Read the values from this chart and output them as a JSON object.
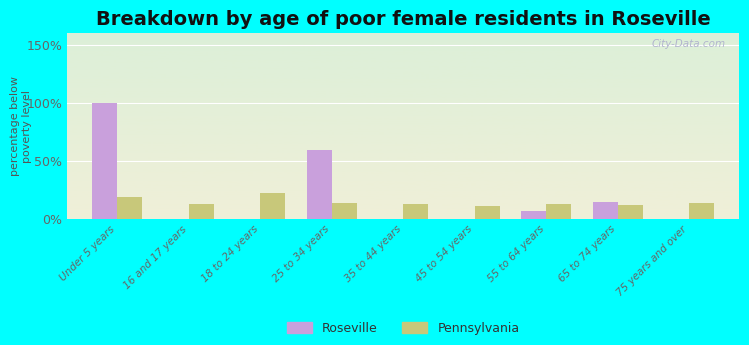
{
  "title": "Breakdown by age of poor female residents in Roseville",
  "categories": [
    "Under 5 years",
    "16 and 17 years",
    "18 to 24 years",
    "25 to 34 years",
    "35 to 44 years",
    "45 to 54 years",
    "55 to 64 years",
    "65 to 74 years",
    "75 years and over"
  ],
  "roseville": [
    100,
    0,
    0,
    59,
    0,
    0,
    7,
    15,
    0
  ],
  "pennsylvania": [
    19,
    13,
    22,
    14,
    13,
    11,
    13,
    12,
    14
  ],
  "roseville_color": "#c9a0dc",
  "pennsylvania_color": "#c8c87a",
  "plot_bg_top": "#dcefd8",
  "plot_bg_bottom": "#f0f0d8",
  "outer_bg": "#00ffff",
  "ylim": [
    0,
    160
  ],
  "yticks": [
    0,
    50,
    100,
    150
  ],
  "ytick_labels": [
    "0%",
    "50%",
    "100%",
    "150%"
  ],
  "ylabel": "percentage below\npoverty level",
  "bar_width": 0.35,
  "title_fontsize": 14,
  "watermark": "City-Data.com"
}
